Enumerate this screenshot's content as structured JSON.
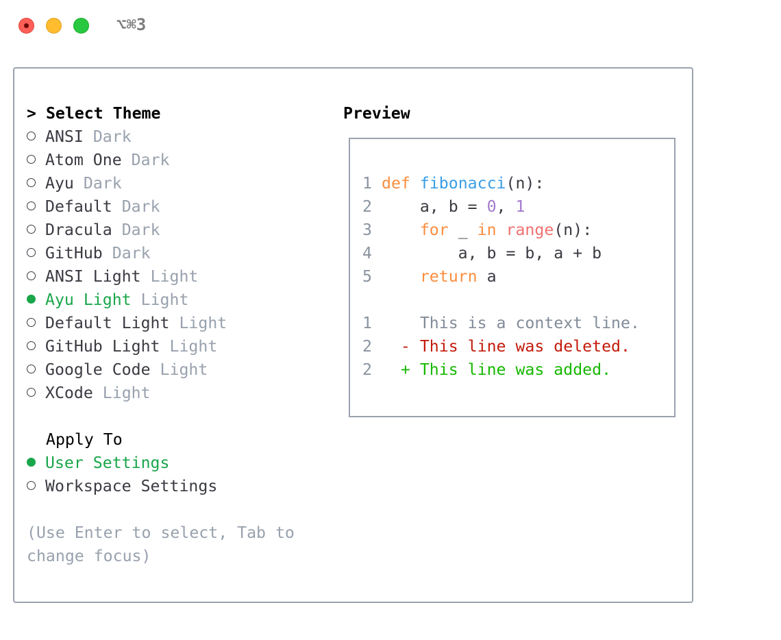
{
  "window": {
    "shortcut": "⌥⌘3"
  },
  "theme_list": {
    "title": "Select Theme",
    "prompt_marker": ">",
    "items": [
      {
        "name": "ANSI",
        "type": "Dark",
        "selected": false
      },
      {
        "name": "Atom One",
        "type": "Dark",
        "selected": false
      },
      {
        "name": "Ayu",
        "type": "Dark",
        "selected": false
      },
      {
        "name": "Default",
        "type": "Dark",
        "selected": false
      },
      {
        "name": "Dracula",
        "type": "Dark",
        "selected": false
      },
      {
        "name": "GitHub",
        "type": "Dark",
        "selected": false
      },
      {
        "name": "ANSI Light",
        "type": "Light",
        "selected": false
      },
      {
        "name": "Ayu Light",
        "type": "Light",
        "selected": true
      },
      {
        "name": "Default Light",
        "type": "Light",
        "selected": false
      },
      {
        "name": "GitHub Light",
        "type": "Light",
        "selected": false
      },
      {
        "name": "Google Code",
        "type": "Light",
        "selected": false
      },
      {
        "name": "XCode",
        "type": "Light",
        "selected": false
      }
    ]
  },
  "apply_to": {
    "title": "Apply To",
    "items": [
      {
        "label": "User Settings",
        "selected": true
      },
      {
        "label": "Workspace Settings",
        "selected": false
      }
    ]
  },
  "hint": {
    "line1": "(Use Enter to select, Tab to",
    "line2": "change focus)"
  },
  "preview": {
    "title": "Preview",
    "code": {
      "l1": {
        "n": "1",
        "def": "def",
        "fn": "fibonacci",
        "rest": "(n):"
      },
      "l2": {
        "n": "2",
        "a": "    a, b = ",
        "zero": "0",
        "comma": ", ",
        "one": "1"
      },
      "l3": {
        "n": "3",
        "pre": "    ",
        "for": "for",
        "mid": " _ ",
        "in": "in",
        "sp": " ",
        "range": "range",
        "rest": "(n):"
      },
      "l4": {
        "n": "4",
        "text": "        a, b = b, a + b"
      },
      "l5": {
        "n": "5",
        "pre": "    ",
        "ret": "return",
        "rest": " a"
      }
    },
    "diff": [
      {
        "n": "1",
        "marker": "  ",
        "text": "This is a context line.",
        "kind": "context"
      },
      {
        "n": "2",
        "marker": "- ",
        "text": "This line was deleted.",
        "kind": "deleted"
      },
      {
        "n": "2",
        "marker": "+ ",
        "text": "This line was added.",
        "kind": "added"
      }
    ]
  },
  "colors": {
    "selected": "#1aa64a",
    "muted": "#98a1ad",
    "keyword": "#fa8d3e",
    "function": "#399ee6",
    "number": "#a37acc",
    "builtin": "#f07171",
    "deleted": "#c31b0b",
    "added": "#16b800"
  }
}
